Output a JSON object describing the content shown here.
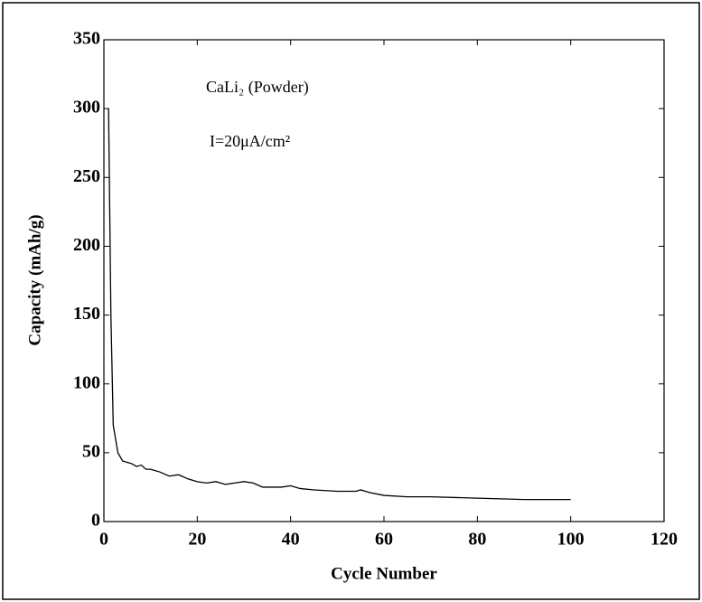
{
  "chart_data": {
    "type": "line",
    "annotations": [
      "CaLi₂ (Powder)",
      "I=20μA/cm²"
    ],
    "x_label": "Cycle Number",
    "y_label": "Capacity (mAh/g)",
    "x": [
      1,
      1.5,
      2,
      3,
      4,
      5,
      6,
      7,
      8,
      9,
      10,
      12,
      14,
      16,
      18,
      20,
      22,
      24,
      26,
      28,
      30,
      32,
      34,
      36,
      38,
      40,
      42,
      45,
      50,
      54,
      55,
      57,
      60,
      65,
      70,
      80,
      90,
      100
    ],
    "series": [
      {
        "color": "#000000",
        "values": [
          300,
          150,
          70,
          50,
          44,
          43,
          42,
          40,
          41,
          38,
          38,
          36,
          33,
          34,
          31,
          29,
          28,
          29,
          27,
          28,
          29,
          28,
          25,
          25,
          25,
          26,
          24,
          23,
          22,
          22,
          23,
          21,
          19,
          18,
          18,
          17,
          16,
          16
        ]
      }
    ],
    "xlim": [
      0,
      120
    ],
    "xticks": [
      0,
      20,
      40,
      60,
      80,
      100,
      120
    ],
    "ylim": [
      0,
      350
    ],
    "yticks": [
      0,
      50,
      100,
      150,
      200,
      250,
      300,
      350
    ]
  }
}
